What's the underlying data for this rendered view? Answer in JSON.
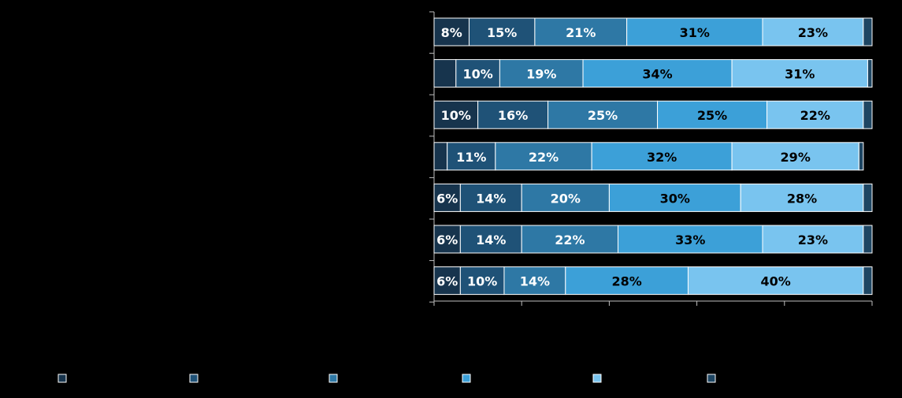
{
  "chart_data": {
    "type": "bar",
    "orientation": "horizontal",
    "stacked": true,
    "percent": true,
    "title": "",
    "xlabel": "",
    "ylabel": "",
    "xlim": [
      0,
      100
    ],
    "legend_position": "bottom",
    "rows": 7,
    "series": [
      {
        "name": "",
        "color": "#17344d",
        "values": [
          8,
          5,
          10,
          3,
          6,
          6,
          6
        ],
        "labels": [
          "8%",
          "",
          "10%",
          "",
          "6%",
          "6%",
          "6%"
        ]
      },
      {
        "name": "",
        "color": "#1f5277",
        "values": [
          15,
          10,
          16,
          11,
          14,
          14,
          10
        ],
        "labels": [
          "15%",
          "10%",
          "16%",
          "11%",
          "14%",
          "14%",
          "10%"
        ]
      },
      {
        "name": "",
        "color": "#2e78a5",
        "values": [
          21,
          19,
          25,
          22,
          20,
          22,
          14
        ],
        "labels": [
          "21%",
          "19%",
          "25%",
          "22%",
          "20%",
          "22%",
          "14%"
        ]
      },
      {
        "name": "",
        "color": "#3ca0d8",
        "values": [
          31,
          34,
          25,
          32,
          30,
          33,
          28
        ],
        "labels": [
          "31%",
          "34%",
          "25%",
          "32%",
          "30%",
          "33%",
          "28%"
        ]
      },
      {
        "name": "",
        "color": "#79c4ef",
        "values": [
          23,
          31,
          22,
          29,
          28,
          23,
          40
        ],
        "labels": [
          "23%",
          "31%",
          "22%",
          "29%",
          "28%",
          "23%",
          "40%"
        ]
      },
      {
        "name": "",
        "color": "#1e4663",
        "values": [
          2,
          1,
          2,
          1,
          2,
          2,
          2
        ],
        "labels": [
          "",
          "",
          "",
          "",
          "",
          "",
          ""
        ]
      }
    ]
  }
}
